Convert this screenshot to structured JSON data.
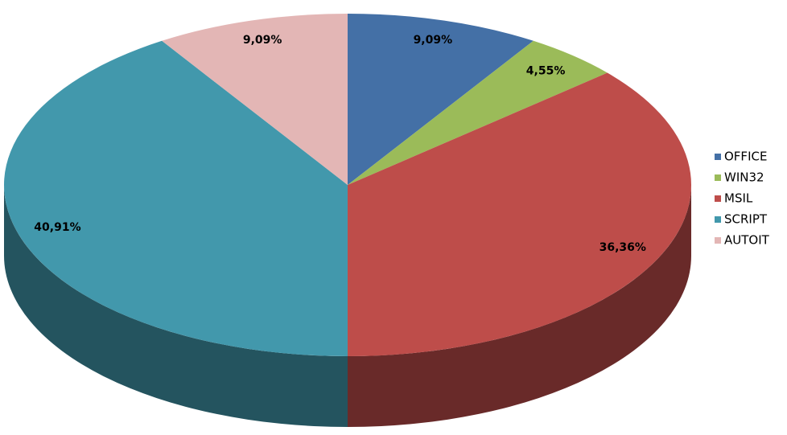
{
  "chart_data": {
    "type": "pie",
    "categories": [
      "OFFICE",
      "WIN32",
      "MSIL",
      "SCRIPT",
      "AUTOIT"
    ],
    "values": [
      9.09,
      4.55,
      36.36,
      40.91,
      9.09
    ],
    "value_labels": [
      "9,09%",
      "4,55%",
      "36,36%",
      "40,91%",
      "9,09%"
    ],
    "colors": [
      "#4470a6",
      "#9bbb59",
      "#be4d4a",
      "#4298ac",
      "#e3b6b5"
    ],
    "legend": "right"
  }
}
